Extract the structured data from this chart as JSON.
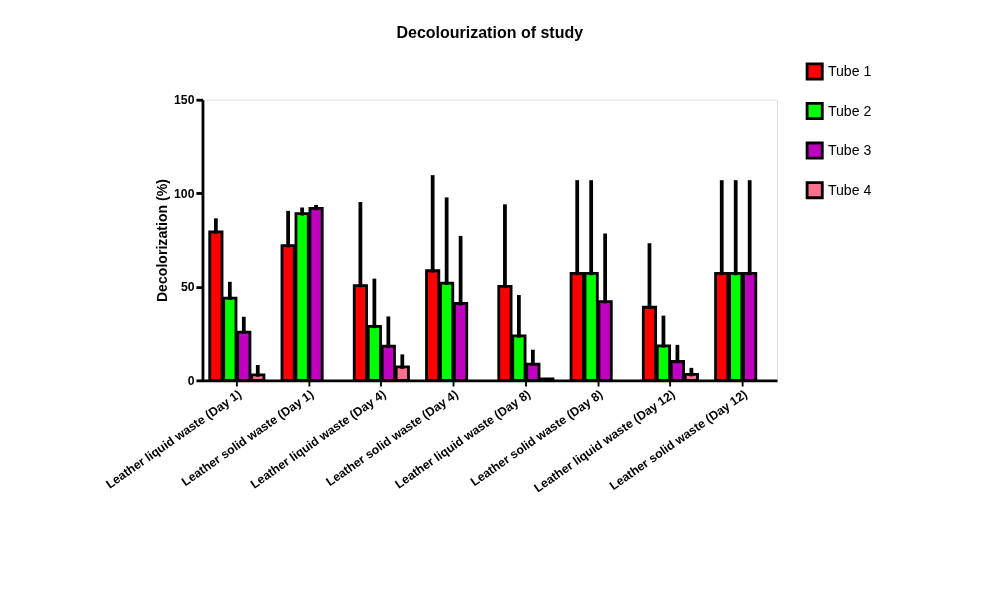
{
  "chart_data": {
    "type": "bar",
    "title": "Decolourization of study",
    "ylabel": "Decolorization (%)",
    "categories": [
      "Leather liquid waste (Day 1)",
      "Leather solid waste (Day 1)",
      "Leather liquid waste (Day 4)",
      "Leather solid waste (Day 4)",
      "Leather liquid waste (Day 8)",
      "Leather solid waste (Day 8)",
      "Leather liquid waste (Day 12)",
      "Leather solid waste (Day 12)"
    ],
    "series": [
      {
        "name": "Tube 1",
        "color": "#ff0000",
        "values": [
          79.4,
          72.0,
          50.7,
          58.6,
          50.3,
          57.2,
          39.1,
          57.2
        ],
        "errors": [
          [
            79.4,
            85.6
          ],
          [
            72.0,
            89.6
          ],
          [
            50.7,
            94.3
          ],
          [
            58.6,
            108.7
          ],
          [
            50.3,
            93.1
          ],
          [
            57.2,
            106.0
          ],
          [
            39.1,
            72.3
          ],
          [
            57.2,
            106.0
          ]
        ]
      },
      {
        "name": "Tube 2",
        "color": "#00ff00",
        "values": [
          44.0,
          89.1,
          28.9,
          52.0,
          23.8,
          57.2,
          18.5,
          57.2
        ],
        "errors": [
          [
            44.0,
            51.7
          ],
          [
            89.1,
            91.4
          ],
          [
            28.9,
            53.4
          ],
          [
            52.0,
            96.8
          ],
          [
            23.8,
            44.6
          ],
          [
            57.2,
            106.0
          ],
          [
            18.5,
            33.6
          ],
          [
            57.2,
            106.0
          ]
        ]
      },
      {
        "name": "Tube 3",
        "color": "#c000c0",
        "values": [
          25.8,
          91.9,
          18.3,
          41.1,
          8.7,
          42.1,
          10.1,
          57.2
        ],
        "errors": [
          [
            25.8,
            33.0
          ],
          [
            91.9,
            92.8
          ],
          [
            18.3,
            33.2
          ],
          [
            41.1,
            76.2
          ],
          [
            8.7,
            15.4
          ],
          [
            42.1,
            77.5
          ],
          [
            10.1,
            18.0
          ],
          [
            57.2,
            106.0
          ]
        ]
      },
      {
        "name": "Tube 4",
        "color": "#ff6f8f",
        "values": [
          3.0,
          null,
          7.2,
          null,
          0.8,
          null,
          3.2,
          null
        ],
        "errors": [
          [
            3.0,
            7.2
          ],
          null,
          [
            7.2,
            12.9
          ],
          null,
          null,
          null,
          [
            3.2,
            5.7
          ],
          null
        ]
      }
    ],
    "ylim": [
      0,
      150
    ],
    "yticks": [
      0,
      50,
      100,
      150
    ],
    "grid": false,
    "legend": "top right"
  }
}
